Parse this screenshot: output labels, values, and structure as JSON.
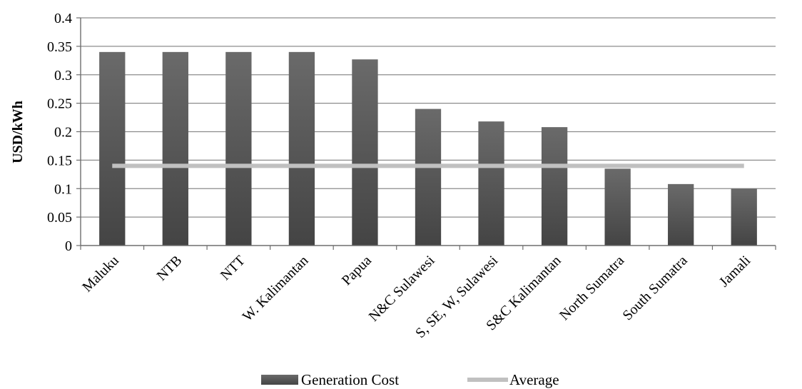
{
  "chart_data": {
    "type": "bar",
    "title": "",
    "xlabel": "",
    "ylabel": "USD/kWh",
    "ylim": [
      0,
      0.4
    ],
    "yticks": [
      0,
      0.05,
      0.1,
      0.15,
      0.2,
      0.25,
      0.3,
      0.35,
      0.4
    ],
    "ytick_labels": [
      "0",
      "0.05",
      "0.1",
      "0.15",
      "0.2",
      "0.25",
      "0.3",
      "0.35",
      "0.4"
    ],
    "categories": [
      "Maluku",
      "NTB",
      "NTT",
      "W. Kalimantan",
      "Papua",
      "N&C Sulawesi",
      "S, SE, W, Sulawesi",
      "S&C Kalimantan",
      "North Sumatra",
      "South Sumatra",
      "Jamali"
    ],
    "series": [
      {
        "name": "Generation Cost",
        "type": "bar",
        "color": "#555555",
        "values": [
          0.34,
          0.34,
          0.34,
          0.34,
          0.327,
          0.24,
          0.218,
          0.208,
          0.135,
          0.108,
          0.1
        ]
      },
      {
        "name": "Average",
        "type": "line",
        "color": "#c0c0c0",
        "values": [
          0.14,
          0.14,
          0.14,
          0.14,
          0.14,
          0.14,
          0.14,
          0.14,
          0.14,
          0.14,
          0.14
        ]
      }
    ],
    "grid": true,
    "legend": "bottom"
  }
}
